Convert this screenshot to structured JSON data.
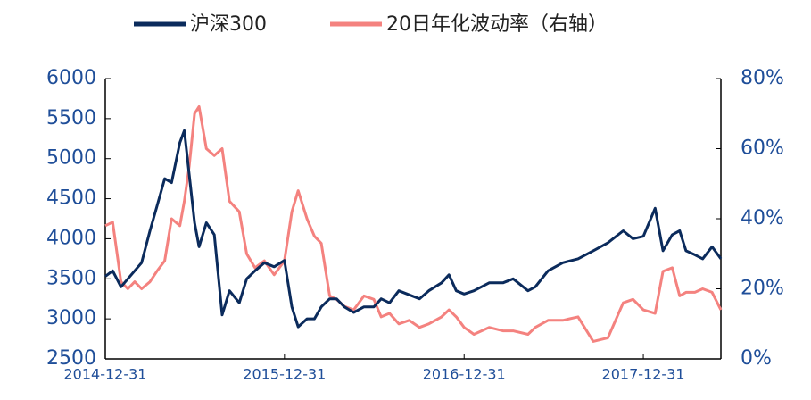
{
  "chart_data": {
    "type": "line",
    "x": [
      "2014-12-31",
      "2015-01-15",
      "2015-02-01",
      "2015-02-15",
      "2015-03-01",
      "2015-03-15",
      "2015-04-01",
      "2015-04-15",
      "2015-05-01",
      "2015-05-15",
      "2015-06-01",
      "2015-06-10",
      "2015-06-20",
      "2015-07-01",
      "2015-07-10",
      "2015-07-25",
      "2015-08-10",
      "2015-08-26",
      "2015-09-10",
      "2015-09-30",
      "2015-10-15",
      "2015-11-01",
      "2015-11-20",
      "2015-12-10",
      "2015-12-31",
      "2016-01-15",
      "2016-01-28",
      "2016-02-15",
      "2016-03-01",
      "2016-03-15",
      "2016-04-01",
      "2016-04-15",
      "2016-05-01",
      "2016-05-20",
      "2016-06-10",
      "2016-06-30",
      "2016-07-15",
      "2016-08-01",
      "2016-08-20",
      "2016-09-10",
      "2016-10-01",
      "2016-10-20",
      "2016-11-15",
      "2016-11-30",
      "2016-12-15",
      "2016-12-31",
      "2017-01-20",
      "2017-02-20",
      "2017-03-20",
      "2017-04-10",
      "2017-05-10",
      "2017-05-25",
      "2017-06-20",
      "2017-07-20",
      "2017-08-20",
      "2017-09-20",
      "2017-10-20",
      "2017-11-20",
      "2017-12-10",
      "2017-12-31",
      "2018-01-24",
      "2018-02-09",
      "2018-02-28",
      "2018-03-15",
      "2018-03-28",
      "2018-04-15",
      "2018-05-01",
      "2018-05-20",
      "2018-06-07"
    ],
    "series": [
      {
        "name": "沪深300",
        "color": "#0b2b5c",
        "axis": "y",
        "values": [
          3530,
          3600,
          3400,
          3500,
          3600,
          3700,
          4100,
          4400,
          4750,
          4700,
          5200,
          5350,
          4800,
          4200,
          3900,
          4200,
          4050,
          3050,
          3350,
          3200,
          3500,
          3600,
          3700,
          3650,
          3730,
          3150,
          2900,
          3000,
          3000,
          3150,
          3250,
          3250,
          3150,
          3080,
          3150,
          3150,
          3250,
          3200,
          3350,
          3300,
          3250,
          3350,
          3450,
          3550,
          3350,
          3310,
          3350,
          3450,
          3450,
          3500,
          3350,
          3400,
          3600,
          3700,
          3750,
          3850,
          3950,
          4100,
          4000,
          4030,
          4380,
          3850,
          4050,
          4100,
          3850,
          3800,
          3750,
          3900,
          3750
        ]
      },
      {
        "name": "20日年化波动率（右轴）",
        "color": "#f4827f",
        "axis": "y2",
        "values": [
          38,
          39,
          22,
          20,
          22,
          20,
          22,
          25,
          28,
          40,
          38,
          45,
          55,
          70,
          72,
          60,
          58,
          60,
          45,
          42,
          30,
          26,
          28,
          24,
          28,
          42,
          48,
          40,
          35,
          33,
          18,
          17,
          15,
          14,
          18,
          17,
          12,
          13,
          10,
          11,
          9,
          10,
          12,
          14,
          12,
          9,
          7,
          9,
          8,
          8,
          7,
          9,
          11,
          11,
          12,
          5,
          6,
          16,
          17,
          14,
          13,
          25,
          26,
          18,
          19,
          19,
          20,
          19,
          14
        ]
      }
    ],
    "xlim": [
      "2014-12-31",
      "2018-06-07"
    ],
    "xticks": [
      "2014-12-31",
      "2015-12-31",
      "2016-12-31",
      "2017-12-31"
    ],
    "ylim": [
      2500,
      6000
    ],
    "yticks": [
      2500,
      3000,
      3500,
      4000,
      4500,
      5000,
      5500,
      6000
    ],
    "y2lim": [
      0,
      80
    ],
    "y2ticks": [
      {
        "value": 0,
        "label": "0%"
      },
      {
        "value": 20,
        "label": "20%"
      },
      {
        "value": 40,
        "label": "40%"
      },
      {
        "value": 60,
        "label": "60%"
      },
      {
        "value": 80,
        "label": "80%"
      }
    ]
  }
}
